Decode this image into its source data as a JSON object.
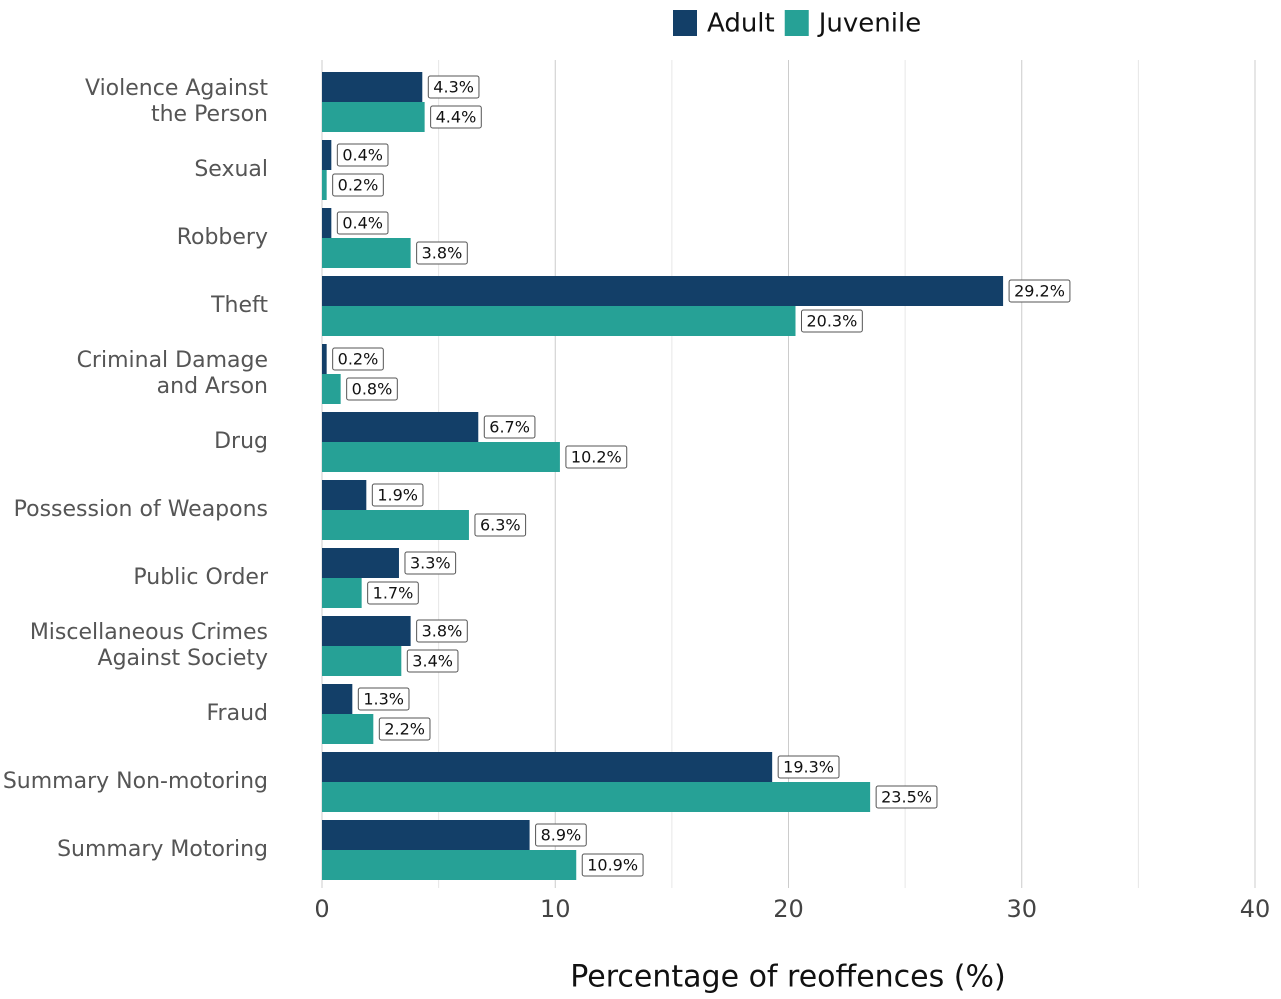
{
  "chart_data": {
    "type": "hbar",
    "categories": [
      "Violence Against\nthe Person",
      "Sexual",
      "Robbery",
      "Theft",
      "Criminal Damage\nand Arson",
      "Drug",
      "Possession of Weapons",
      "Public Order",
      "Miscellaneous Crimes\nAgainst Society",
      "Fraud",
      "Summary Non-motoring",
      "Summary Motoring"
    ],
    "series": [
      {
        "name": "Adult",
        "color": "#133f68",
        "values": [
          4.3,
          0.4,
          0.4,
          29.2,
          0.2,
          6.7,
          1.9,
          3.3,
          3.8,
          1.3,
          19.3,
          8.9
        ],
        "value_labels": [
          "4.3%",
          "0.4%",
          "0.4%",
          "29.2%",
          "0.2%",
          "6.7%",
          "1.9%",
          "3.3%",
          "3.8%",
          "1.3%",
          "19.3%",
          "8.9%"
        ]
      },
      {
        "name": "Juvenile",
        "color": "#26a196",
        "values": [
          4.4,
          0.2,
          3.8,
          20.3,
          0.8,
          10.2,
          6.3,
          1.7,
          3.4,
          2.2,
          23.5,
          10.9
        ],
        "value_labels": [
          "4.4%",
          "0.2%",
          "3.8%",
          "20.3%",
          "0.8%",
          "10.2%",
          "6.3%",
          "1.7%",
          "3.4%",
          "2.2%",
          "23.5%",
          "10.9%"
        ]
      }
    ],
    "xlabel": "Percentage of reoffences (%)",
    "xlim": [
      0,
      40
    ],
    "xticks": [
      0,
      10,
      20,
      30,
      40
    ],
    "minor_xticks": [
      5,
      15,
      25,
      35
    ],
    "grid": true,
    "legend": "top"
  }
}
